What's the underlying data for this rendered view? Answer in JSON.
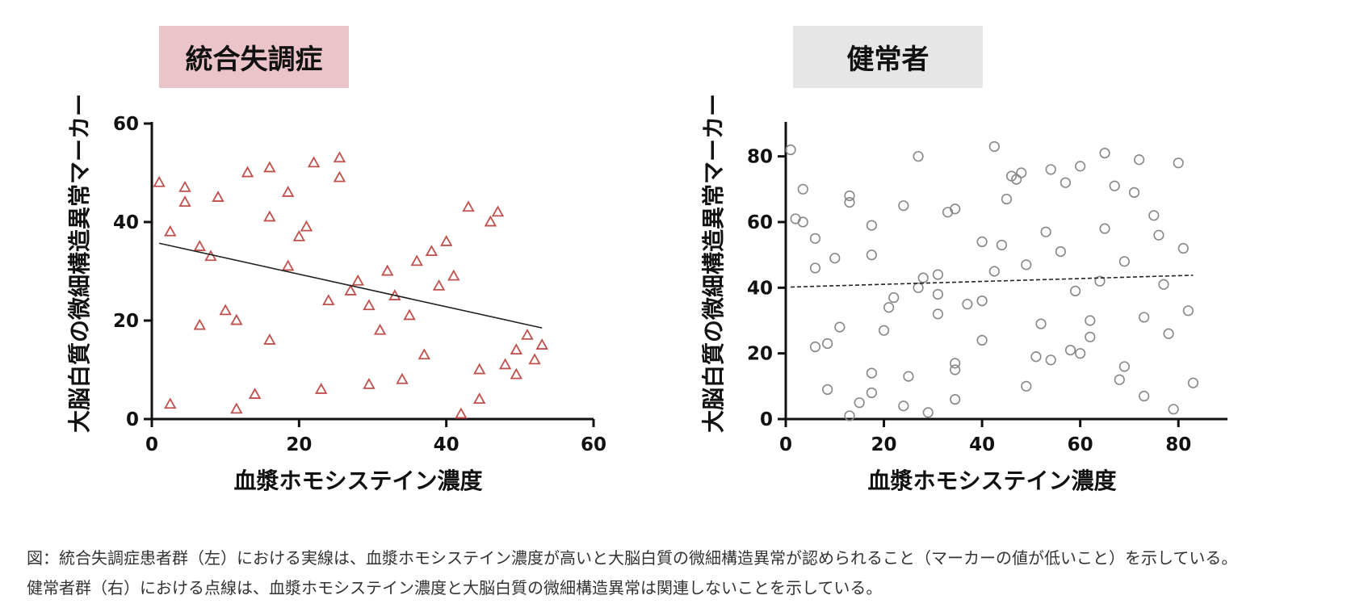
{
  "panels": [
    {
      "title": "統合失調症",
      "title_bg": "#eac4c8"
    },
    {
      "title": "健常者",
      "title_bg": "#e6e6e6"
    }
  ],
  "caption": {
    "line1": "図：統合失調症患者群（左）における実線は、血漿ホモシステイン濃度が高いと大脳白質の微細構造異常が認められること（マーカーの値が低いこと）を示している。",
    "line2": "健常者群（右）における点線は、血漿ホモシステイン濃度と大脳白質の微細構造異常は関連しないことを示している。"
  },
  "chart_data": [
    {
      "type": "scatter",
      "title": "統合失調症",
      "xlabel": "血漿ホモシステイン濃度",
      "ylabel": "大脳白質の微細構造異常マーカー",
      "xlim": [
        0,
        60
      ],
      "ylim": [
        0,
        60
      ],
      "xticks": [
        0,
        20,
        40,
        60
      ],
      "yticks": [
        0,
        20,
        40,
        60
      ],
      "marker": "triangle",
      "marker_color": "#c0504d",
      "points": [
        [
          1,
          48
        ],
        [
          2.5,
          38
        ],
        [
          2.5,
          3
        ],
        [
          4.5,
          47
        ],
        [
          4.5,
          44
        ],
        [
          6.5,
          35
        ],
        [
          6.5,
          19
        ],
        [
          8,
          33
        ],
        [
          9,
          45
        ],
        [
          10,
          22
        ],
        [
          11.5,
          20
        ],
        [
          11.5,
          2
        ],
        [
          13,
          50
        ],
        [
          14,
          5
        ],
        [
          16,
          51
        ],
        [
          16,
          41
        ],
        [
          16,
          16
        ],
        [
          18.5,
          46
        ],
        [
          18.5,
          31
        ],
        [
          20,
          37
        ],
        [
          21,
          39
        ],
        [
          22,
          52
        ],
        [
          23,
          6
        ],
        [
          24,
          24
        ],
        [
          25.5,
          53
        ],
        [
          25.5,
          49
        ],
        [
          27,
          26
        ],
        [
          28,
          28
        ],
        [
          29.5,
          23
        ],
        [
          29.5,
          7
        ],
        [
          31,
          18
        ],
        [
          32,
          30
        ],
        [
          33,
          25
        ],
        [
          34,
          8
        ],
        [
          35,
          21
        ],
        [
          36,
          32
        ],
        [
          37,
          13
        ],
        [
          38,
          34
        ],
        [
          39,
          27
        ],
        [
          40,
          36
        ],
        [
          41,
          29
        ],
        [
          42,
          1
        ],
        [
          43,
          43
        ],
        [
          44.5,
          10
        ],
        [
          44.5,
          4
        ],
        [
          46,
          40
        ],
        [
          47,
          42
        ],
        [
          48,
          11
        ],
        [
          49.5,
          14
        ],
        [
          49.5,
          9
        ],
        [
          51,
          17
        ],
        [
          52,
          12
        ],
        [
          53,
          15
        ]
      ],
      "fit_line": {
        "style": "solid",
        "x": [
          1,
          53
        ],
        "y": [
          35.7,
          18.5
        ]
      }
    },
    {
      "type": "scatter",
      "title": "健常者",
      "xlabel": "血漿ホモシステイン濃度",
      "ylabel": "大脳白質の微細構造異常マーカー",
      "xlim": [
        0,
        90
      ],
      "ylim": [
        0,
        90
      ],
      "xticks": [
        0,
        20,
        40,
        60,
        80
      ],
      "yticks": [
        0,
        20,
        40,
        60,
        80
      ],
      "marker": "circle",
      "marker_color": "#888888",
      "points": [
        [
          1,
          82
        ],
        [
          2,
          61
        ],
        [
          3.5,
          60
        ],
        [
          3.5,
          70
        ],
        [
          6,
          55
        ],
        [
          6,
          46
        ],
        [
          6,
          22
        ],
        [
          8.5,
          23
        ],
        [
          8.5,
          9
        ],
        [
          10,
          49
        ],
        [
          11,
          28
        ],
        [
          13,
          68
        ],
        [
          13,
          66
        ],
        [
          13,
          1
        ],
        [
          15,
          5
        ],
        [
          17.5,
          59
        ],
        [
          17.5,
          50
        ],
        [
          17.5,
          14
        ],
        [
          17.5,
          8
        ],
        [
          20,
          27
        ],
        [
          21,
          34
        ],
        [
          22,
          37
        ],
        [
          24,
          65
        ],
        [
          24,
          4
        ],
        [
          25,
          13
        ],
        [
          27,
          80
        ],
        [
          27,
          40
        ],
        [
          28,
          43
        ],
        [
          29,
          2
        ],
        [
          31,
          44
        ],
        [
          31,
          38
        ],
        [
          31,
          32
        ],
        [
          33,
          63
        ],
        [
          34.5,
          64
        ],
        [
          34.5,
          17
        ],
        [
          34.5,
          15
        ],
        [
          34.5,
          6
        ],
        [
          37,
          35
        ],
        [
          40,
          54
        ],
        [
          40,
          36
        ],
        [
          40,
          24
        ],
        [
          42.5,
          83
        ],
        [
          42.5,
          45
        ],
        [
          44,
          53
        ],
        [
          45,
          67
        ],
        [
          46,
          74
        ],
        [
          47,
          73
        ],
        [
          48,
          75
        ],
        [
          49,
          47
        ],
        [
          49,
          10
        ],
        [
          51,
          19
        ],
        [
          52,
          29
        ],
        [
          53,
          57
        ],
        [
          54,
          76
        ],
        [
          54,
          18
        ],
        [
          56,
          51
        ],
        [
          57,
          72
        ],
        [
          58,
          21
        ],
        [
          59,
          39
        ],
        [
          60,
          77
        ],
        [
          60,
          20
        ],
        [
          62,
          30
        ],
        [
          62,
          25
        ],
        [
          64,
          42
        ],
        [
          65,
          81
        ],
        [
          65,
          58
        ],
        [
          67,
          71
        ],
        [
          68,
          12
        ],
        [
          69,
          48
        ],
        [
          69,
          16
        ],
        [
          71,
          69
        ],
        [
          72,
          79
        ],
        [
          73,
          31
        ],
        [
          73,
          7
        ],
        [
          75,
          62
        ],
        [
          76,
          56
        ],
        [
          77,
          41
        ],
        [
          78,
          26
        ],
        [
          79,
          3
        ],
        [
          80,
          78
        ],
        [
          81,
          52
        ],
        [
          82,
          33
        ],
        [
          83,
          11
        ]
      ],
      "fit_line": {
        "style": "dashed",
        "x": [
          1,
          83
        ],
        "y": [
          40.2,
          43.8
        ]
      }
    }
  ]
}
